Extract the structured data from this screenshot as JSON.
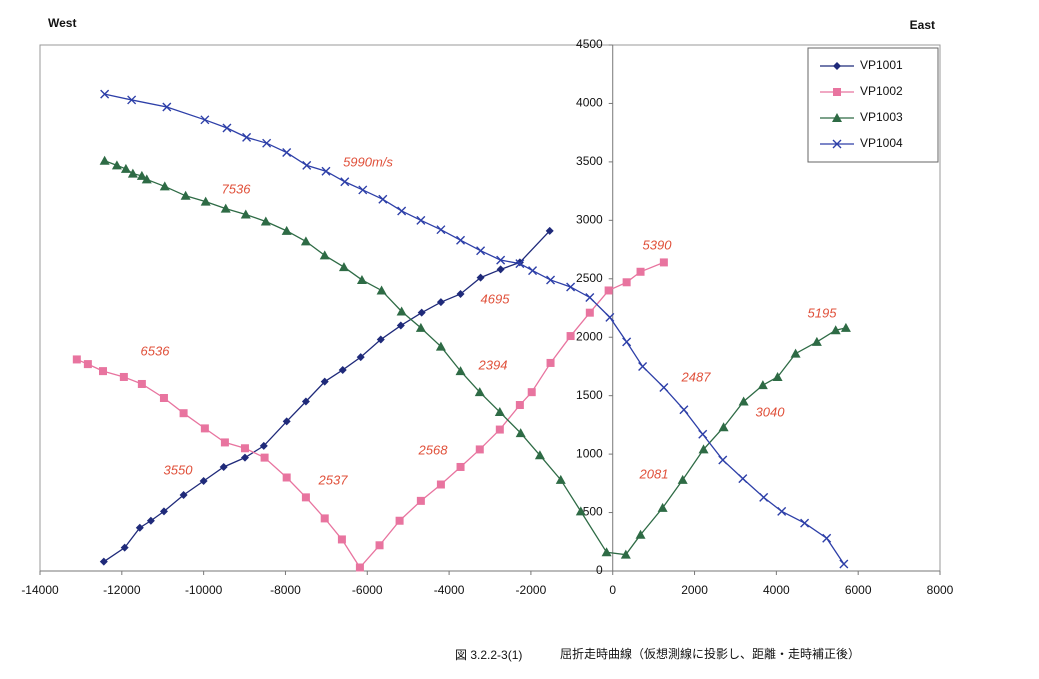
{
  "chart_data": {
    "type": "line",
    "labels": {
      "left": "West",
      "right": "East"
    },
    "caption": {
      "number": "図 3.2.2-3(1)",
      "text": "屈折走時曲線（仮想測線に投影し、距離・走時補正後）"
    },
    "xlim": [
      -14000,
      8000
    ],
    "xticks": [
      -14000,
      -12000,
      -10000,
      -8000,
      -6000,
      -4000,
      -2000,
      0,
      2000,
      4000,
      6000,
      8000
    ],
    "ylim": [
      0,
      4500
    ],
    "yticks": [
      0,
      500,
      1000,
      1500,
      2000,
      2500,
      3000,
      3500,
      4000,
      4500
    ],
    "grid": false,
    "legend": "upper right",
    "annotations": [
      "5990m/s",
      "7536",
      "6536",
      "4695",
      "5390",
      "2394",
      "2487",
      "5195",
      "3550",
      "2537",
      "2568",
      "2081",
      "3040"
    ],
    "series": [
      {
        "name": "VP1001",
        "color": "#1f2a7a",
        "marker": "diamond",
        "x": [
          -12440,
          -11930,
          -11560,
          -11290,
          -10970,
          -10490,
          -10000,
          -9510,
          -8990,
          -8530,
          -7970,
          -7500,
          -7040,
          -6600,
          -6160,
          -5670,
          -5180,
          -4670,
          -4200,
          -3720,
          -3230,
          -2740,
          -2270,
          -1540
        ],
        "values": [
          80,
          200,
          370,
          430,
          510,
          650,
          770,
          890,
          970,
          1070,
          1280,
          1450,
          1620,
          1720,
          1830,
          1980,
          2100,
          2210,
          2300,
          2370,
          2510,
          2580,
          2640,
          2910
        ]
      },
      {
        "name": "VP1002",
        "color": "#e8749f",
        "marker": "square",
        "x": [
          -13100,
          -12830,
          -12460,
          -11950,
          -11510,
          -10970,
          -10490,
          -9970,
          -9480,
          -8990,
          -8510,
          -7970,
          -7500,
          -7040,
          -6620,
          -6180,
          -5700,
          -5210,
          -4690,
          -4200,
          -3720,
          -3250,
          -2760,
          -2270,
          -1980,
          -1520,
          -1030,
          -560,
          -100,
          340,
          680,
          1250
        ],
        "values": [
          1810,
          1770,
          1710,
          1660,
          1600,
          1480,
          1350,
          1220,
          1100,
          1050,
          970,
          800,
          630,
          450,
          270,
          30,
          220,
          430,
          600,
          740,
          890,
          1040,
          1210,
          1420,
          1530,
          1780,
          2010,
          2210,
          2400,
          2470,
          2560,
          2640
        ]
      },
      {
        "name": "VP1003",
        "color": "#2e6b45",
        "marker": "triangle",
        "x": [
          -12420,
          -12120,
          -11900,
          -11730,
          -11510,
          -11390,
          -10950,
          -10440,
          -9950,
          -9460,
          -8970,
          -8480,
          -7970,
          -7500,
          -7040,
          -6570,
          -6130,
          -5650,
          -5160,
          -4690,
          -4200,
          -3720,
          -3250,
          -2760,
          -2250,
          -1780,
          -1270,
          -780,
          -150,
          320,
          680,
          1220,
          1710,
          2220,
          2710,
          3200,
          3670,
          4030,
          4470,
          4990,
          5450,
          5700
        ],
        "values": [
          3510,
          3470,
          3440,
          3400,
          3380,
          3350,
          3290,
          3210,
          3160,
          3100,
          3050,
          2990,
          2910,
          2820,
          2700,
          2600,
          2490,
          2400,
          2220,
          2080,
          1920,
          1710,
          1530,
          1360,
          1180,
          990,
          780,
          510,
          160,
          140,
          310,
          540,
          780,
          1040,
          1230,
          1450,
          1590,
          1660,
          1860,
          1960,
          2060,
          2080
        ]
      },
      {
        "name": "VP1004",
        "color": "#2d3fa8",
        "marker": "x",
        "x": [
          -12420,
          -11760,
          -10900,
          -9970,
          -9430,
          -8950,
          -8460,
          -7970,
          -7480,
          -7010,
          -6550,
          -6110,
          -5620,
          -5160,
          -4690,
          -4200,
          -3720,
          -3230,
          -2740,
          -2270,
          -1960,
          -1520,
          -1030,
          -560,
          -70,
          340,
          730,
          1250,
          1740,
          2200,
          2690,
          3180,
          3690,
          4130,
          4690,
          5230,
          5650
        ],
        "values": [
          4080,
          4030,
          3970,
          3860,
          3790,
          3710,
          3660,
          3580,
          3470,
          3420,
          3330,
          3260,
          3180,
          3080,
          3000,
          2920,
          2830,
          2740,
          2660,
          2630,
          2570,
          2490,
          2430,
          2340,
          2170,
          1960,
          1750,
          1570,
          1380,
          1170,
          950,
          790,
          630,
          510,
          410,
          280,
          60
        ]
      }
    ]
  }
}
